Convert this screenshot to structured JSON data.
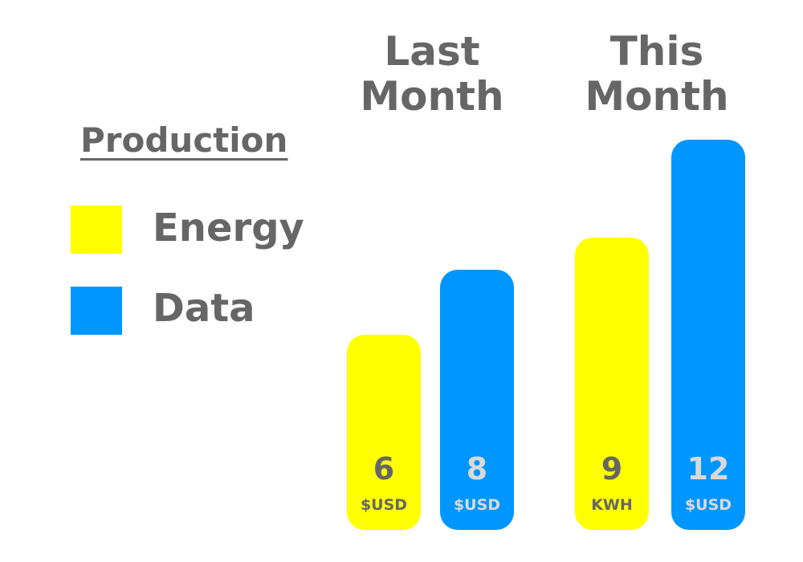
{
  "chart_data": {
    "type": "bar",
    "categories": [
      "Last Month",
      "This Month"
    ],
    "legend_title": "Production",
    "legend_position": "left",
    "grid": false,
    "ylim": [
      0,
      12
    ],
    "series": [
      {
        "name": "Energy",
        "color": "#FFFF00",
        "values": [
          6,
          9
        ],
        "units": [
          "$USD",
          "KWH"
        ],
        "label_color": "#666666"
      },
      {
        "name": "Data",
        "color": "#0096FF",
        "values": [
          8,
          12
        ],
        "units": [
          "$USD",
          "$USD"
        ],
        "label_color": "#D9D9D9"
      }
    ]
  }
}
